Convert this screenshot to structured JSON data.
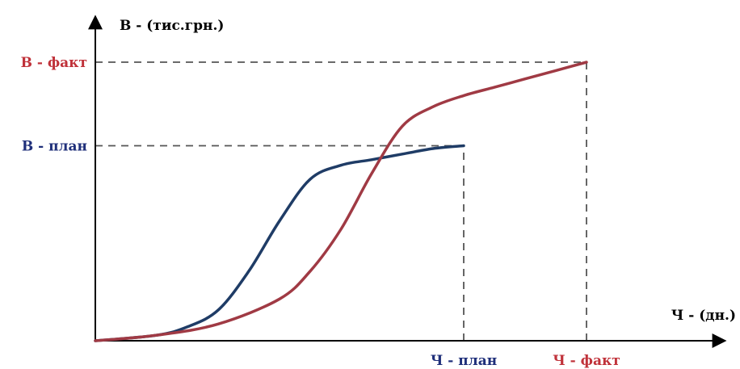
{
  "chart_data": {
    "type": "line",
    "ylabel": "В - (тис.грн.)",
    "xlabel": "Ч - (дн.)",
    "xlim": [
      0,
      100
    ],
    "ylim": [
      0,
      100
    ],
    "grid": false,
    "ytick_labels": [
      {
        "text": "В - факт",
        "value": 100,
        "color": "#c0323a"
      },
      {
        "text": "В - план",
        "value": 70,
        "color": "#1f2f7a"
      }
    ],
    "xtick_labels": [
      {
        "text": "Ч - план",
        "value": 60,
        "color": "#1f2f7a"
      },
      {
        "text": "Ч - факт",
        "value": 80,
        "color": "#c0323a"
      }
    ],
    "series": [
      {
        "color": "#1f3c66",
        "x": [
          0,
          10,
          15,
          20,
          25,
          30,
          35,
          40,
          45,
          50,
          55,
          60
        ],
        "y": [
          0,
          2,
          5,
          11,
          25,
          43,
          58,
          63,
          65,
          67,
          69,
          70
        ]
      },
      {
        "color": "#a03a44",
        "x": [
          0,
          10,
          20,
          30,
          35,
          40,
          45,
          50,
          55,
          60,
          65,
          70,
          75,
          80
        ],
        "y": [
          0,
          2,
          6,
          15,
          25,
          40,
          60,
          77,
          84,
          88,
          91,
          94,
          97,
          100
        ]
      }
    ],
    "reference_lines": [
      {
        "from_axis": "y",
        "value": 100,
        "to_x": 80
      },
      {
        "from_axis": "y",
        "value": 70,
        "to_x": 60
      },
      {
        "from_axis": "x",
        "value": 60,
        "to_y": 70
      },
      {
        "from_axis": "x",
        "value": 80,
        "to_y": 100
      }
    ]
  }
}
